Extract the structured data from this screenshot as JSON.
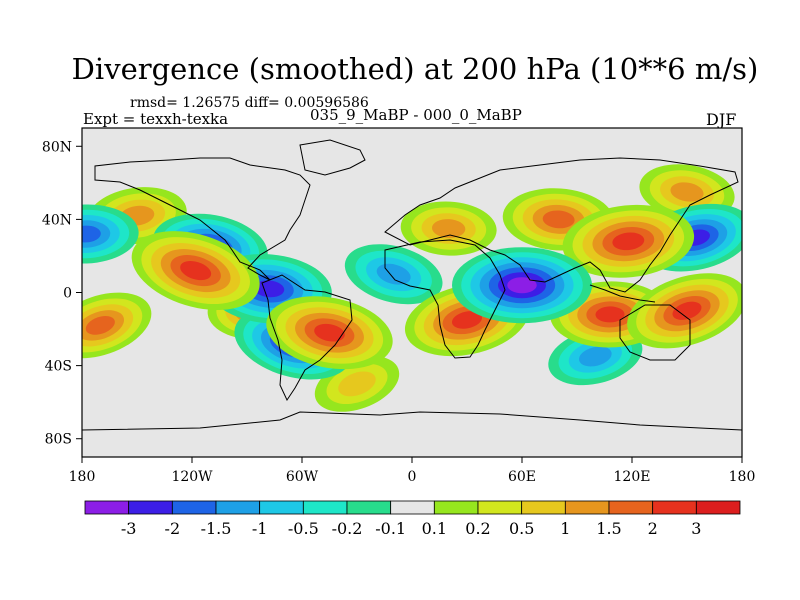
{
  "figure": {
    "title": "Divergence (smoothed) at 200 hPa (10**6 m/s)",
    "stats": "rmsd= 1.26575 diff= 0.00596586",
    "experiment": "Expt = texxh-texka",
    "difference": "035_9_MaBP - 000_0_MaBP",
    "season": "DJF"
  },
  "axes": {
    "x_ticks": [
      "180",
      "120W",
      "60W",
      "0",
      "60E",
      "120E",
      "180"
    ],
    "y_ticks": [
      "80N",
      "40N",
      "0",
      "40S",
      "80S"
    ]
  },
  "colorbar": {
    "labels": [
      "-3",
      "-2",
      "-1.5",
      "-1",
      "-0.5",
      "-0.2",
      "-0.1",
      "0.1",
      "0.2",
      "0.5",
      "1",
      "1.5",
      "2",
      "3"
    ],
    "colors": [
      "#8c1ee6",
      "#3c1ee6",
      "#1e64e6",
      "#1ea0e6",
      "#1ec8e6",
      "#1ee6c8",
      "#28dc8c",
      "#e6e6e6",
      "#96e61e",
      "#d2e61e",
      "#e6c81e",
      "#e6961e",
      "#e6641e",
      "#e6321e",
      "#dc1e1e"
    ]
  },
  "chart_data": {
    "type": "heatmap",
    "title": "Divergence (smoothed) at 200 hPa (10**6 m/s)",
    "units": "10**6 m/s",
    "x_range": [
      -180,
      180
    ],
    "y_range": [
      -90,
      90
    ],
    "levels": [
      -3,
      -2,
      -1.5,
      -1,
      -0.5,
      -0.2,
      -0.1,
      0.1,
      0.2,
      0.5,
      1,
      1.5,
      2,
      3
    ],
    "features": [
      {
        "lon": 60,
        "lat": 4,
        "value": -3.2
      },
      {
        "lon": -78,
        "lat": 2,
        "value": -2.5
      },
      {
        "lon": -65,
        "lat": -28,
        "value": -2.2
      },
      {
        "lon": 155,
        "lat": 30,
        "value": -2.0
      },
      {
        "lon": -178,
        "lat": 32,
        "value": -1.5
      },
      {
        "lon": -110,
        "lat": 25,
        "value": -2.0
      },
      {
        "lon": 118,
        "lat": 28,
        "value": 2.8
      },
      {
        "lon": -118,
        "lat": 12,
        "value": 2.8
      },
      {
        "lon": 30,
        "lat": -15,
        "value": 2.5
      },
      {
        "lon": -45,
        "lat": -22,
        "value": 2.6
      },
      {
        "lon": -80,
        "lat": -8,
        "value": 2.0
      },
      {
        "lon": 150,
        "lat": -10,
        "value": 2.4
      },
      {
        "lon": 108,
        "lat": -12,
        "value": 2.2
      },
      {
        "lon": -170,
        "lat": -18,
        "value": 1.5
      },
      {
        "lon": 80,
        "lat": 40,
        "value": 1.8
      },
      {
        "lon": -150,
        "lat": 42,
        "value": 1.2
      },
      {
        "lon": 20,
        "lat": 35,
        "value": 1.0
      },
      {
        "lon": -10,
        "lat": 10,
        "value": -1.2
      },
      {
        "lon": 100,
        "lat": -35,
        "value": -1.0
      },
      {
        "lon": -30,
        "lat": -50,
        "value": 0.6
      },
      {
        "lon": 150,
        "lat": 55,
        "value": 1.0
      }
    ]
  }
}
